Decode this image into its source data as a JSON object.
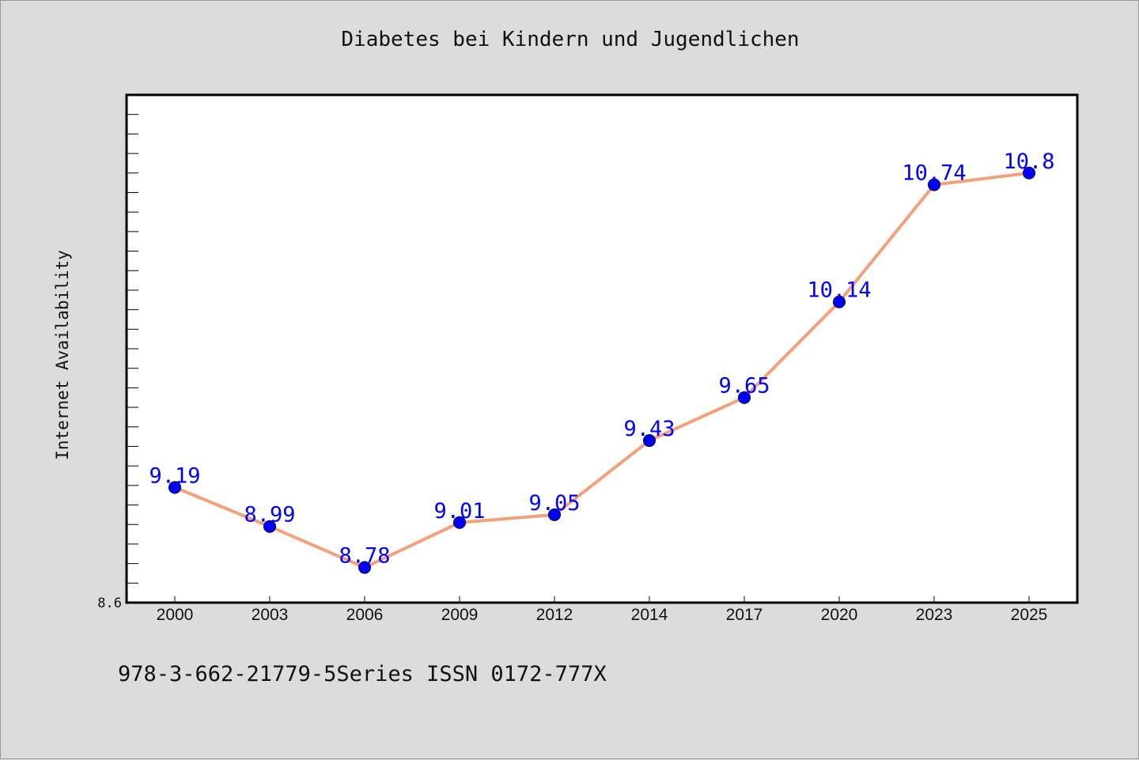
{
  "chart_data": {
    "type": "line",
    "title": "Diabetes bei Kindern und Jugendlichen",
    "xlabel": "",
    "ylabel": "Internet Availability",
    "categories": [
      "2000",
      "2003",
      "2006",
      "2009",
      "2012",
      "2014",
      "2017",
      "2020",
      "2023",
      "2025"
    ],
    "series": [
      {
        "values": [
          9.19,
          8.99,
          8.78,
          9.01,
          9.05,
          9.43,
          9.65,
          10.14,
          10.74,
          10.8
        ],
        "data_labels": [
          "9.19",
          "8.99",
          "8.78",
          "9.01",
          "9.05",
          "9.43",
          "9.65",
          "10.14",
          "10.74",
          "10.8"
        ]
      }
    ],
    "ylim": [
      8.6,
      11.2
    ],
    "y_tick_labels": [
      "8.6"
    ],
    "grid": false,
    "line_color": "#f4a07a",
    "marker_color": "#0000ff",
    "label_color": "#0000ff"
  },
  "footer": {
    "text": "978-3-662-21779-5Series ISSN 0172-777X"
  }
}
